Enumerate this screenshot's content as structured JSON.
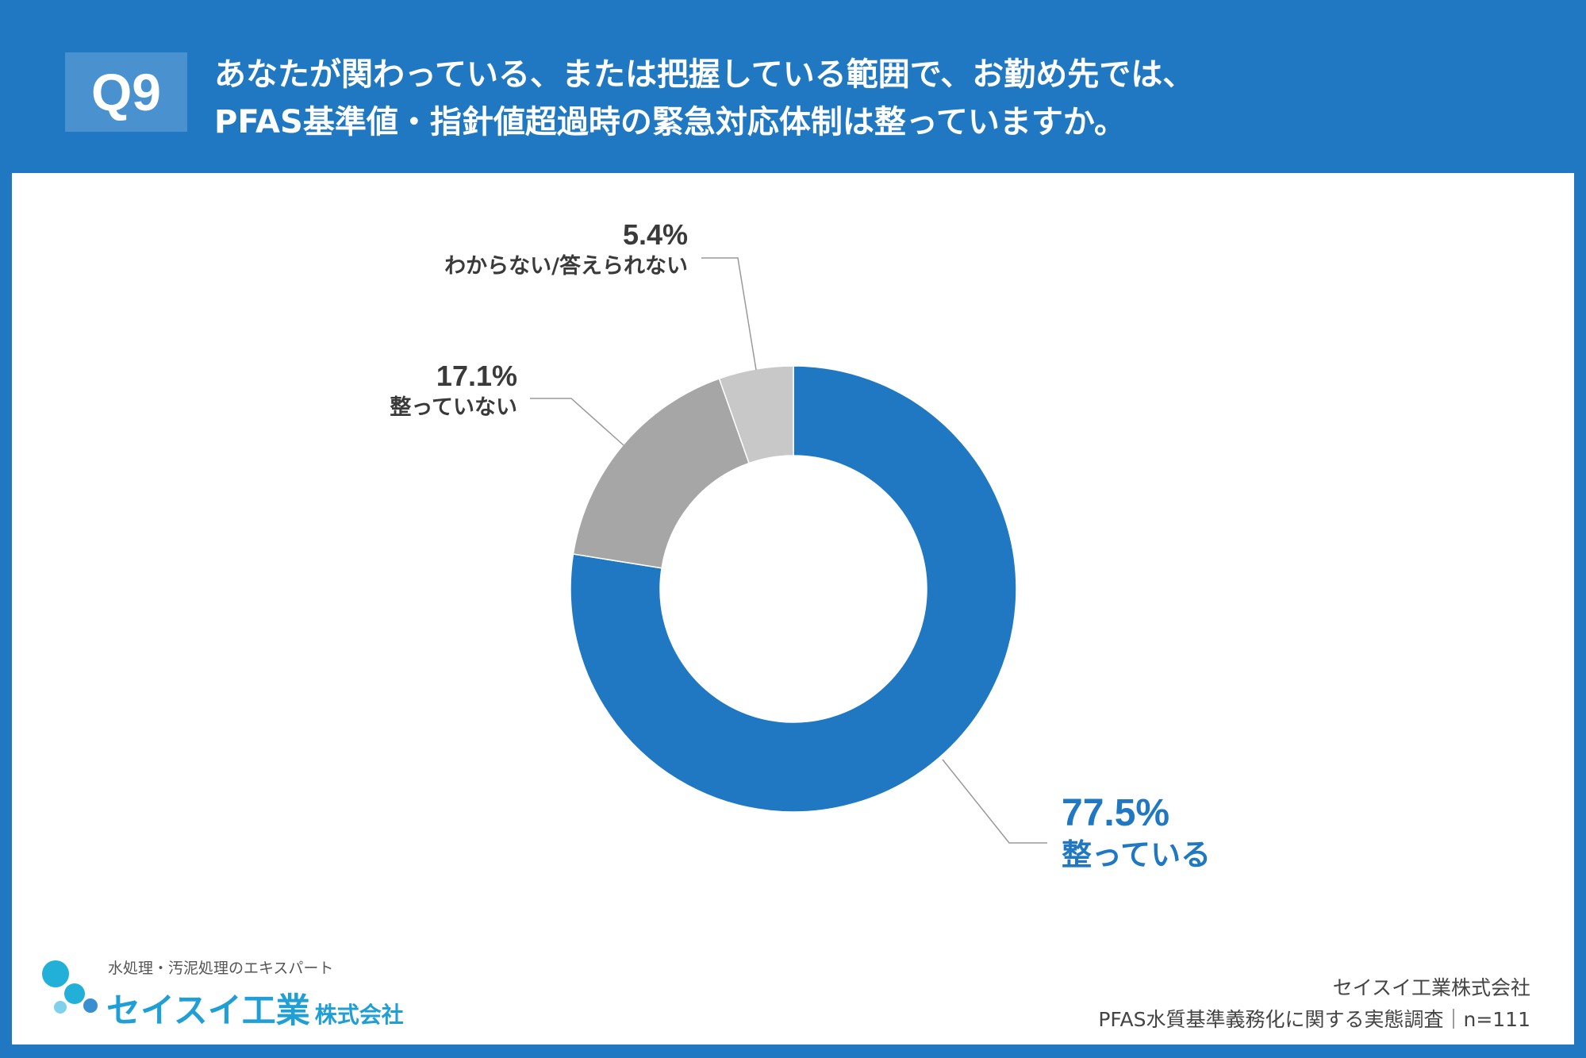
{
  "header": {
    "badge": "Q9",
    "title_line1": "あなたが関わっている、または把握している範囲で、お勤め先では、",
    "title_line2": "PFAS基準値・指針値超過時の緊急対応体制は整っていますか。"
  },
  "chart_data": {
    "type": "pie",
    "donut": true,
    "start_angle": "12 o'clock",
    "direction": "clockwise",
    "slices": [
      {
        "label": "整っている",
        "value": 77.5,
        "pct_text": "77.5%",
        "color": "#1f78c1",
        "label_color": "#1f78c1"
      },
      {
        "label": "整っていない",
        "value": 17.1,
        "pct_text": "17.1%",
        "color": "#a6a6a6",
        "label_color": "#3a3a3a"
      },
      {
        "label": "わからない/答えられない",
        "value": 5.4,
        "pct_text": "5.4%",
        "color": "#c8c8c8",
        "label_color": "#3a3a3a"
      }
    ]
  },
  "footer": {
    "logo_tagline": "水処理・汚泥処理のエキスパート",
    "logo_name": "セイスイ工業",
    "logo_suffix": "株式会社",
    "source_company": "セイスイ工業株式会社",
    "source_survey": "PFAS水質基準義務化に関する実態調査｜n=111"
  },
  "colors": {
    "background": "#1f78c1",
    "panel": "#ffffff",
    "accent": "#1f78c1",
    "logo": "#1f9fd5"
  }
}
